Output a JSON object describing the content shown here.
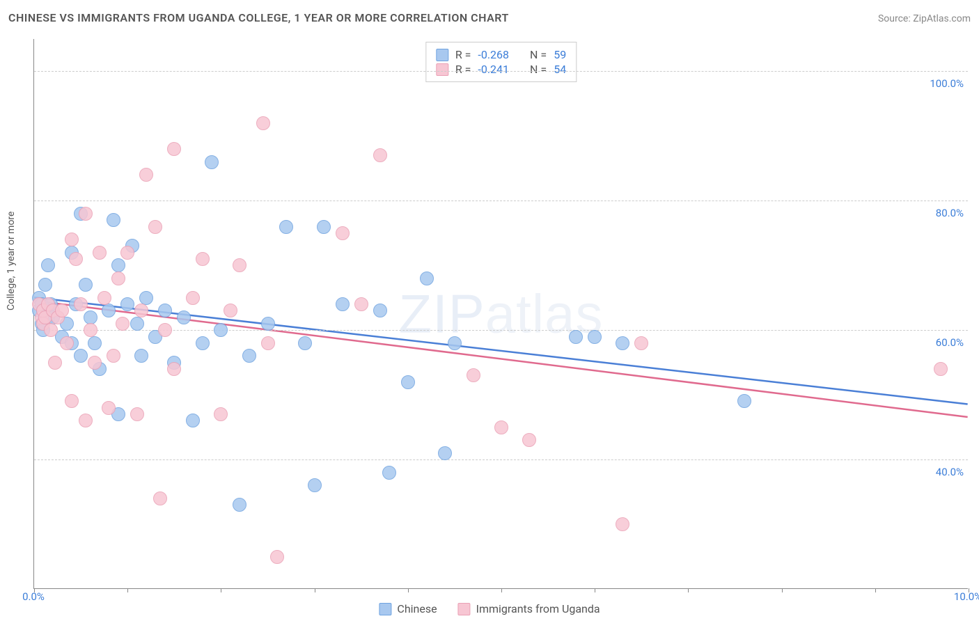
{
  "title": "CHINESE VS IMMIGRANTS FROM UGANDA COLLEGE, 1 YEAR OR MORE CORRELATION CHART",
  "source": "Source: ZipAtlas.com",
  "watermark": "ZIPatlas",
  "chart": {
    "type": "scatter",
    "xlim": [
      0,
      10
    ],
    "ylim": [
      20,
      105
    ],
    "x_unit": "%",
    "y_unit": "%",
    "ylabel": "College, 1 year or more",
    "x_ticks": [
      0,
      1,
      2,
      3,
      4,
      5,
      6,
      7,
      8,
      9,
      10
    ],
    "x_tick_labels": {
      "0": "0.0%",
      "10": "10.0%"
    },
    "y_gridlines": [
      40,
      60,
      80,
      100
    ],
    "y_tick_labels": {
      "40": "40.0%",
      "60": "60.0%",
      "80": "80.0%",
      "100": "100.0%"
    },
    "background_color": "#ffffff",
    "grid_color": "#cccccc",
    "axis_color": "#888888",
    "tick_label_color": "#3b7dd8",
    "marker_radius": 10,
    "marker_fill_opacity": 0.35,
    "line_width": 2.5,
    "series": [
      {
        "name": "Chinese",
        "color_fill": "#a8c8ef",
        "color_stroke": "#6fa3e0",
        "trend_color": "#4a7fd6",
        "R": -0.268,
        "N": 59,
        "trend": {
          "y_at_x0": 65.0,
          "y_at_x10": 48.5
        },
        "points": [
          [
            0.05,
            65
          ],
          [
            0.05,
            63
          ],
          [
            0.08,
            64
          ],
          [
            0.08,
            61
          ],
          [
            0.1,
            63
          ],
          [
            0.1,
            60
          ],
          [
            0.12,
            67
          ],
          [
            0.15,
            70
          ],
          [
            0.15,
            62
          ],
          [
            0.18,
            64
          ],
          [
            0.2,
            62
          ],
          [
            0.3,
            59
          ],
          [
            0.35,
            61
          ],
          [
            0.4,
            72
          ],
          [
            0.4,
            58
          ],
          [
            0.45,
            64
          ],
          [
            0.5,
            78
          ],
          [
            0.5,
            56
          ],
          [
            0.55,
            67
          ],
          [
            0.6,
            62
          ],
          [
            0.65,
            58
          ],
          [
            0.7,
            54
          ],
          [
            0.8,
            63
          ],
          [
            0.85,
            77
          ],
          [
            0.9,
            70
          ],
          [
            0.9,
            47
          ],
          [
            1.0,
            64
          ],
          [
            1.05,
            73
          ],
          [
            1.1,
            61
          ],
          [
            1.15,
            56
          ],
          [
            1.2,
            65
          ],
          [
            1.3,
            59
          ],
          [
            1.4,
            63
          ],
          [
            1.5,
            55
          ],
          [
            1.6,
            62
          ],
          [
            1.7,
            46
          ],
          [
            1.8,
            58
          ],
          [
            1.9,
            86
          ],
          [
            2.0,
            60
          ],
          [
            2.2,
            33
          ],
          [
            2.3,
            56
          ],
          [
            2.5,
            61
          ],
          [
            2.7,
            76
          ],
          [
            2.9,
            58
          ],
          [
            3.0,
            36
          ],
          [
            3.1,
            76
          ],
          [
            3.3,
            64
          ],
          [
            3.7,
            63
          ],
          [
            3.8,
            38
          ],
          [
            4.0,
            52
          ],
          [
            4.2,
            68
          ],
          [
            4.4,
            41
          ],
          [
            4.5,
            58
          ],
          [
            5.8,
            59
          ],
          [
            6.0,
            59
          ],
          [
            6.3,
            58
          ],
          [
            7.6,
            49
          ]
        ]
      },
      {
        "name": "Immigrants from Uganda",
        "color_fill": "#f7c6d3",
        "color_stroke": "#eaa0b5",
        "trend_color": "#e06a8e",
        "R": -0.241,
        "N": 54,
        "trend": {
          "y_at_x0": 64.5,
          "y_at_x10": 46.5
        },
        "points": [
          [
            0.05,
            64
          ],
          [
            0.08,
            62
          ],
          [
            0.1,
            63
          ],
          [
            0.1,
            61
          ],
          [
            0.12,
            62
          ],
          [
            0.15,
            64
          ],
          [
            0.18,
            60
          ],
          [
            0.2,
            63
          ],
          [
            0.22,
            55
          ],
          [
            0.25,
            62
          ],
          [
            0.3,
            63
          ],
          [
            0.35,
            58
          ],
          [
            0.4,
            74
          ],
          [
            0.4,
            49
          ],
          [
            0.45,
            71
          ],
          [
            0.5,
            64
          ],
          [
            0.55,
            46
          ],
          [
            0.55,
            78
          ],
          [
            0.6,
            60
          ],
          [
            0.65,
            55
          ],
          [
            0.7,
            72
          ],
          [
            0.75,
            65
          ],
          [
            0.8,
            48
          ],
          [
            0.85,
            56
          ],
          [
            0.9,
            68
          ],
          [
            0.95,
            61
          ],
          [
            1.0,
            72
          ],
          [
            1.1,
            47
          ],
          [
            1.15,
            63
          ],
          [
            1.2,
            84
          ],
          [
            1.3,
            76
          ],
          [
            1.35,
            34
          ],
          [
            1.4,
            60
          ],
          [
            1.5,
            88
          ],
          [
            1.5,
            54
          ],
          [
            1.7,
            65
          ],
          [
            1.8,
            71
          ],
          [
            2.0,
            47
          ],
          [
            2.1,
            63
          ],
          [
            2.2,
            70
          ],
          [
            2.45,
            92
          ],
          [
            2.5,
            58
          ],
          [
            2.6,
            25
          ],
          [
            3.3,
            75
          ],
          [
            3.5,
            64
          ],
          [
            3.7,
            87
          ],
          [
            4.7,
            53
          ],
          [
            5.0,
            45
          ],
          [
            5.3,
            43
          ],
          [
            6.3,
            30
          ],
          [
            6.5,
            58
          ],
          [
            9.7,
            54
          ]
        ]
      }
    ]
  },
  "legend_top_labels": {
    "R": "R =",
    "N": "N ="
  },
  "legend_bottom": [
    "Chinese",
    "Immigrants from Uganda"
  ]
}
